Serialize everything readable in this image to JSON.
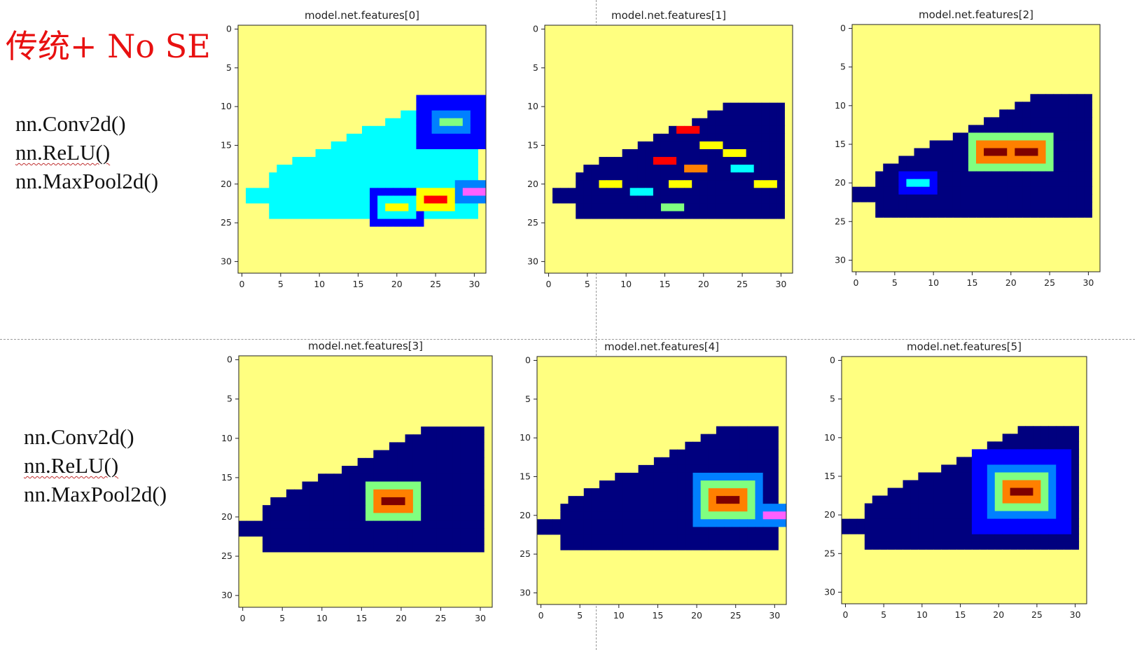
{
  "heading": "传统+ No SE",
  "layer_groups": [
    {
      "lines": [
        "nn.Conv2d()",
        "nn.ReLU()",
        "nn.MaxPool2d()"
      ]
    },
    {
      "lines": [
        "nn.Conv2d()",
        "nn.ReLU()",
        "nn.MaxPool2d()"
      ]
    }
  ],
  "colors": {
    "background": "#ffff80",
    "heading": "#e81010",
    "colormap": [
      "#ffff80",
      "#00007f",
      "#0000ff",
      "#0080ff",
      "#00ffff",
      "#80ff80",
      "#ffff00",
      "#ff8000",
      "#ff0000",
      "#7f0000",
      "#ff60ff"
    ]
  },
  "chart_data": [
    {
      "type": "heatmap",
      "title": "model.net.features[0]",
      "xlim": [
        0,
        31
      ],
      "ylim": [
        31,
        0
      ],
      "xticks": [
        "0",
        "5",
        "10",
        "15",
        "20",
        "25",
        "30"
      ],
      "yticks": [
        "0",
        "5",
        "10",
        "15",
        "20",
        "25",
        "30"
      ],
      "shoe": {
        "top_row": 10,
        "bottom_row": 24,
        "left_col": 1,
        "right_col": 30,
        "toe_row": 20,
        "heel_top_row": 10
      },
      "body_level": 4,
      "hotspots": [
        {
          "row": 22,
          "col": 25,
          "level": 8,
          "radius": 2
        },
        {
          "row": 23,
          "col": 20,
          "level": 6,
          "radius": 2
        },
        {
          "row": 12,
          "col": 27,
          "level": 5,
          "radius": 3
        },
        {
          "row": 21,
          "col": 30,
          "level": 10,
          "radius": 1
        }
      ]
    },
    {
      "type": "heatmap",
      "title": "model.net.features[1]",
      "xlim": [
        0,
        31
      ],
      "ylim": [
        31,
        0
      ],
      "xticks": [
        "0",
        "5",
        "10",
        "15",
        "20",
        "25",
        "30"
      ],
      "yticks": [
        "0",
        "5",
        "10",
        "15",
        "20",
        "25",
        "30"
      ],
      "shoe": {
        "top_row": 10,
        "bottom_row": 24,
        "left_col": 1,
        "right_col": 30,
        "toe_row": 20,
        "heel_top_row": 10
      },
      "body_level": 1,
      "hotspots": [
        {
          "row": 13,
          "col": 18,
          "level": 8,
          "radius": 0
        },
        {
          "row": 17,
          "col": 15,
          "level": 8,
          "radius": 0
        },
        {
          "row": 18,
          "col": 19,
          "level": 7,
          "radius": 0
        },
        {
          "row": 20,
          "col": 17,
          "level": 6,
          "radius": 0
        },
        {
          "row": 16,
          "col": 24,
          "level": 6,
          "radius": 0
        },
        {
          "row": 20,
          "col": 28,
          "level": 6,
          "radius": 0
        },
        {
          "row": 15,
          "col": 21,
          "level": 6,
          "radius": 0
        },
        {
          "row": 18,
          "col": 25,
          "level": 4,
          "radius": 0
        },
        {
          "row": 21,
          "col": 12,
          "level": 4,
          "radius": 0
        },
        {
          "row": 20,
          "col": 8,
          "level": 6,
          "radius": 0
        },
        {
          "row": 23,
          "col": 16,
          "level": 5,
          "radius": 0
        }
      ]
    },
    {
      "type": "heatmap",
      "title": "model.net.features[2]",
      "xlim": [
        0,
        31
      ],
      "ylim": [
        31,
        0
      ],
      "xticks": [
        "0",
        "5",
        "10",
        "15",
        "20",
        "25",
        "30"
      ],
      "yticks": [
        "0",
        "5",
        "10",
        "15",
        "20",
        "25",
        "30"
      ],
      "shoe": {
        "top_row": 9,
        "bottom_row": 24,
        "left_col": 0,
        "right_col": 30,
        "toe_row": 20,
        "heel_top_row": 9
      },
      "body_level": 1,
      "hotspots": [
        {
          "row": 16,
          "col": 18,
          "level": 9,
          "radius": 2
        },
        {
          "row": 16,
          "col": 22,
          "level": 9,
          "radius": 2
        },
        {
          "row": 20,
          "col": 8,
          "level": 4,
          "radius": 1
        }
      ]
    },
    {
      "type": "heatmap",
      "title": "model.net.features[3]",
      "xlim": [
        0,
        31
      ],
      "ylim": [
        31,
        0
      ],
      "xticks": [
        "0",
        "5",
        "10",
        "15",
        "20",
        "25",
        "30"
      ],
      "yticks": [
        "0",
        "5",
        "10",
        "15",
        "20",
        "25",
        "30"
      ],
      "shoe": {
        "top_row": 9,
        "bottom_row": 24,
        "left_col": 0,
        "right_col": 30,
        "toe_row": 20,
        "heel_top_row": 9
      },
      "body_level": 1,
      "hotspots": [
        {
          "row": 18,
          "col": 19,
          "level": 9,
          "radius": 2
        }
      ]
    },
    {
      "type": "heatmap",
      "title": "model.net.features[4]",
      "xlim": [
        0,
        31
      ],
      "ylim": [
        31,
        0
      ],
      "xticks": [
        "0",
        "5",
        "10",
        "15",
        "20",
        "25",
        "30"
      ],
      "yticks": [
        "0",
        "5",
        "10",
        "15",
        "20",
        "25",
        "30"
      ],
      "shoe": {
        "top_row": 9,
        "bottom_row": 24,
        "left_col": 0,
        "right_col": 30,
        "toe_row": 20,
        "heel_top_row": 9
      },
      "body_level": 1,
      "hotspots": [
        {
          "row": 18,
          "col": 24,
          "level": 9,
          "radius": 3
        },
        {
          "row": 20,
          "col": 30,
          "level": 10,
          "radius": 1
        }
      ]
    },
    {
      "type": "heatmap",
      "title": "model.net.features[5]",
      "xlim": [
        0,
        31
      ],
      "ylim": [
        31,
        0
      ],
      "xticks": [
        "0",
        "5",
        "10",
        "15",
        "20",
        "25",
        "30"
      ],
      "yticks": [
        "0",
        "5",
        "10",
        "15",
        "20",
        "25",
        "30"
      ],
      "shoe": {
        "top_row": 9,
        "bottom_row": 24,
        "left_col": 0,
        "right_col": 30,
        "toe_row": 20,
        "heel_top_row": 9
      },
      "body_level": 1,
      "hotspots": [
        {
          "row": 17,
          "col": 23,
          "level": 9,
          "radius": 5
        }
      ]
    }
  ]
}
